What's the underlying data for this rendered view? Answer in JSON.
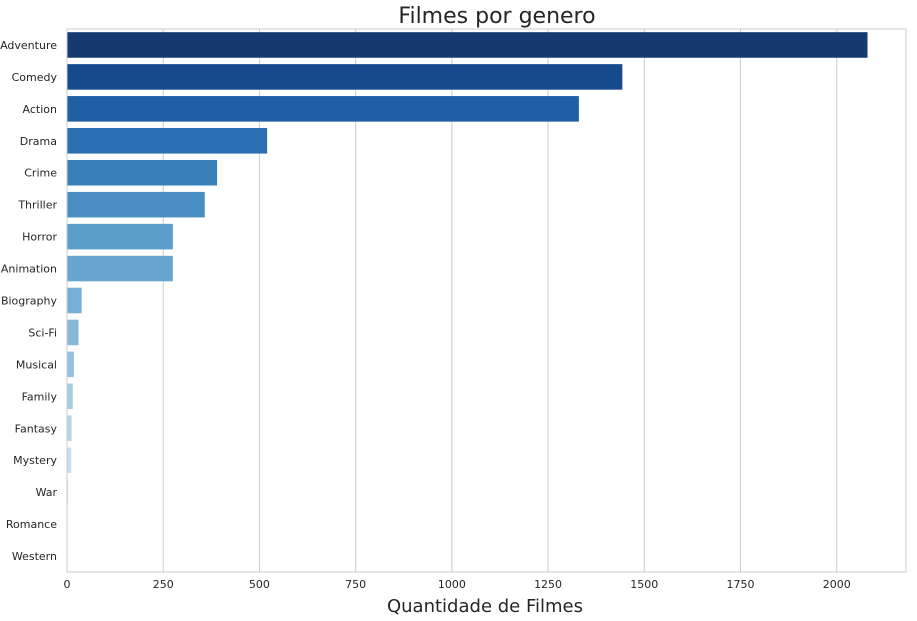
{
  "chart_data": {
    "type": "bar",
    "orientation": "horizontal",
    "title": "Filmes por genero",
    "xlabel": "Quantidade de Filmes",
    "ylabel": "",
    "categories": [
      "Adventure",
      "Comedy",
      "Action",
      "Drama",
      "Crime",
      "Thriller",
      "Horror",
      "Animation",
      "Biography",
      "Sci-Fi",
      "Musical",
      "Family",
      "Fantasy",
      "Mystery",
      "War",
      "Romance",
      "Western"
    ],
    "values": [
      2080,
      1443,
      1330,
      520,
      390,
      358,
      275,
      275,
      38,
      30,
      18,
      15,
      12,
      11,
      3,
      1,
      1
    ],
    "xlim": [
      0,
      2180
    ],
    "xticks": [
      0,
      250,
      500,
      750,
      1000,
      1250,
      1500,
      1750,
      2000
    ],
    "grid": "vertical",
    "palette": [
      "#163b72",
      "#184b8e",
      "#1f5fa3",
      "#2a70b3",
      "#3780ba",
      "#4a8fc3",
      "#5b9dcb",
      "#68a6cf",
      "#76b0d5",
      "#85b9da",
      "#96c2df",
      "#a7cce4",
      "#b7d6ea",
      "#c5def0",
      "#d2e5f3",
      "#dfedf7",
      "#eaf3fa"
    ]
  }
}
